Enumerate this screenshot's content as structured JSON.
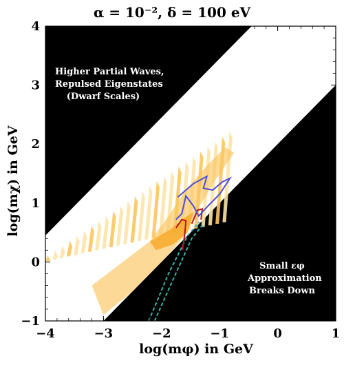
{
  "title": "α = 10⁻², δ = 100 eV",
  "chart_data": {
    "type": "area",
    "title": "α = 10⁻², δ = 100 eV",
    "xlabel": "log(mφ) in GeV",
    "ylabel": "log(mχ) in GeV",
    "xlim": [
      -4,
      1
    ],
    "ylim": [
      -1,
      4
    ],
    "x_ticks": [
      "−4",
      "−3",
      "−2",
      "−1",
      "0",
      "1"
    ],
    "y_ticks": [
      "−1",
      "0",
      "1",
      "2",
      "3",
      "4"
    ],
    "excluded_regions": [
      {
        "name": "Higher Partial Waves, Repulsed Eigenstates (Dwarf Scales)",
        "lines": [
          "Higher Partial Waves,",
          "Repulsed Eigenstates",
          "(Dwarf Scales)"
        ],
        "color": "#000000",
        "boundary": [
          [
            -4,
            0.45
          ],
          [
            -0.45,
            4
          ]
        ]
      },
      {
        "name": "Small εφ Approximation Breaks Down",
        "lines": [
          "Small εφ",
          "Approximation",
          "Breaks Down"
        ],
        "color": "#000000",
        "boundary": [
          [
            -3.0,
            -1
          ],
          [
            1,
            3.0
          ]
        ]
      }
    ],
    "colors": {
      "orange_light": "#fde4a8",
      "orange_mid": "#fbc55e",
      "orange_dark": "#f6a623",
      "blue_contour": "#4c4fd8",
      "red_contour": "#b8141a",
      "teal_dashed": "#34b8b0"
    },
    "blue_contour": [
      [
        -1.72,
        1.1
      ],
      [
        -1.45,
        1.33
      ],
      [
        -1.22,
        1.45
      ],
      [
        -1.28,
        1.25
      ],
      [
        -1.12,
        1.22
      ],
      [
        -0.95,
        1.36
      ],
      [
        -0.82,
        1.42
      ],
      [
        -1.0,
        1.15
      ],
      [
        -1.2,
        0.95
      ],
      [
        -1.36,
        0.78
      ],
      [
        -1.45,
        0.95
      ],
      [
        -1.58,
        1.12
      ],
      [
        -1.65,
        0.82
      ],
      [
        -1.75,
        0.72
      ]
    ],
    "red_contour": [
      [
        -1.75,
        0.58
      ],
      [
        -1.65,
        0.72
      ],
      [
        -1.58,
        0.7
      ],
      [
        -1.6,
        0.48
      ],
      [
        -1.64,
        0.2
      ]
    ],
    "red_contour_2": [
      [
        -1.48,
        0.65
      ],
      [
        -1.38,
        0.88
      ],
      [
        -1.3,
        0.9
      ],
      [
        -1.32,
        0.72
      ]
    ],
    "teal_dashed_1": [
      [
        -2.22,
        -1.0
      ],
      [
        -1.88,
        -0.2
      ],
      [
        -1.55,
        0.45
      ],
      [
        -1.35,
        0.68
      ]
    ],
    "teal_dashed_2": [
      [
        -2.12,
        -1.0
      ],
      [
        -1.78,
        -0.25
      ],
      [
        -1.48,
        0.4
      ],
      [
        -1.3,
        0.62
      ]
    ]
  }
}
